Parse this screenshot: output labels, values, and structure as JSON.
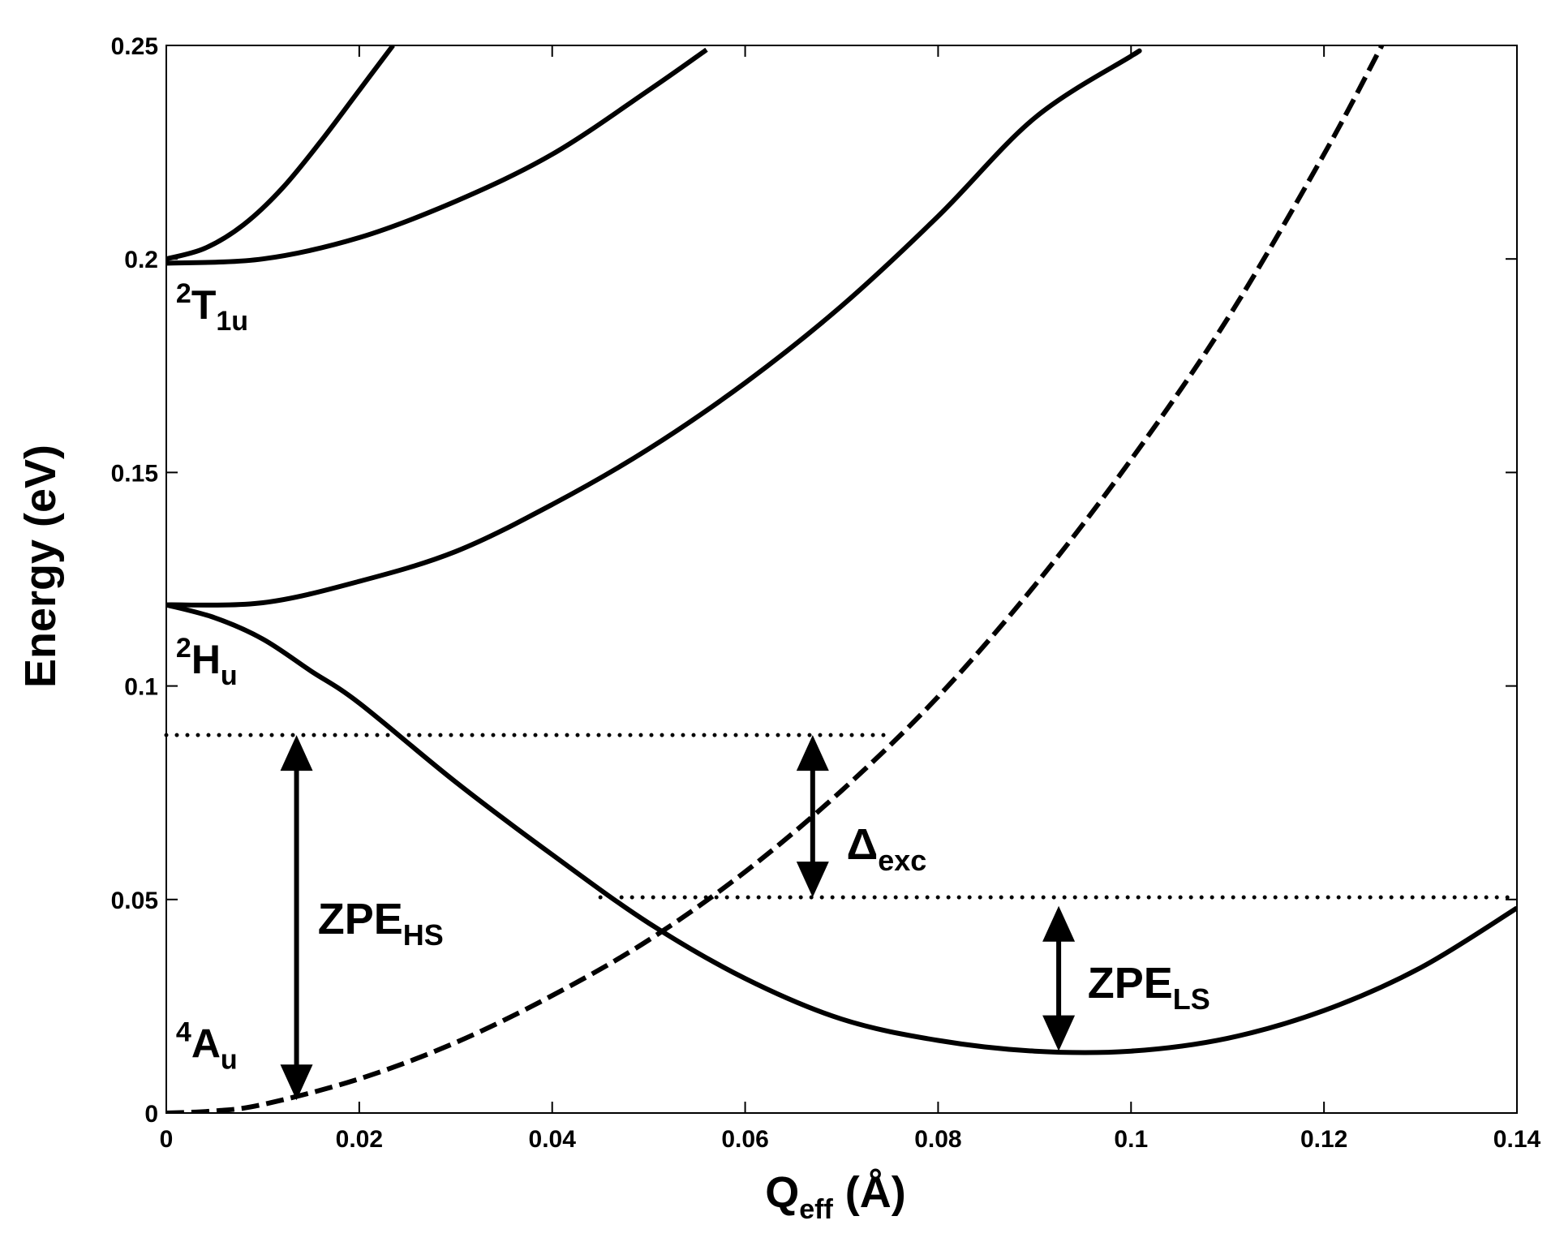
{
  "chart_data": {
    "type": "line",
    "title": "",
    "xlabel": {
      "main": "Q",
      "sub": "eff",
      "unit": " (Å)"
    },
    "ylabel": "Energy (eV)",
    "xlim": [
      0,
      0.14
    ],
    "ylim": [
      0,
      0.25
    ],
    "xticks": [
      0,
      0.02,
      0.04,
      0.06,
      0.08,
      0.1,
      0.12,
      0.14
    ],
    "xtick_labels": [
      "0",
      "0.02",
      "0.04",
      "0.06",
      "0.08",
      "0.1",
      "0.12",
      "0.14"
    ],
    "yticks": [
      0,
      0.05,
      0.1,
      0.15,
      0.2,
      0.25
    ],
    "ytick_labels": [
      "0",
      "0.05",
      "0.1",
      "0.15",
      "0.2",
      "0.25"
    ],
    "grid": false,
    "color": "#000000",
    "series": [
      {
        "style": "solid",
        "x": [
          0,
          0.004,
          0.008,
          0.012,
          0.016,
          0.02,
          0.0235
        ],
        "y": [
          0.2,
          0.2025,
          0.208,
          0.2165,
          0.2275,
          0.2395,
          0.25
        ]
      },
      {
        "style": "solid",
        "x": [
          0,
          0.01,
          0.02,
          0.03,
          0.04,
          0.05,
          0.056
        ],
        "y": [
          0.199,
          0.2,
          0.205,
          0.2135,
          0.2245,
          0.2395,
          0.249
        ]
      },
      {
        "style": "solid",
        "x": [
          0,
          0.01,
          0.02,
          0.03,
          0.04,
          0.05,
          0.06,
          0.07,
          0.08,
          0.09,
          0.1,
          0.1004
        ],
        "y": [
          0.119,
          0.1195,
          0.1245,
          0.1315,
          0.1425,
          0.1555,
          0.171,
          0.189,
          0.21,
          0.233,
          0.2475,
          0.248
        ]
      },
      {
        "style": "solid",
        "x": [
          0,
          0.005,
          0.01,
          0.015,
          0.02,
          0.03,
          0.04,
          0.05,
          0.06,
          0.07,
          0.08,
          0.09,
          0.1,
          0.11,
          0.12,
          0.13,
          0.14
        ],
        "y": [
          0.119,
          0.116,
          0.111,
          0.1035,
          0.096,
          0.0775,
          0.0605,
          0.0445,
          0.0315,
          0.022,
          0.017,
          0.0145,
          0.0145,
          0.0175,
          0.024,
          0.034,
          0.048
        ]
      },
      {
        "style": "dashed",
        "x": [
          0,
          0.005,
          0.01,
          0.02,
          0.03,
          0.04,
          0.05,
          0.06,
          0.07,
          0.08,
          0.09,
          0.1,
          0.11,
          0.12,
          0.126
        ],
        "y": [
          0,
          0.0005,
          0.002,
          0.008,
          0.0165,
          0.0275,
          0.0405,
          0.0565,
          0.0755,
          0.0975,
          0.1235,
          0.153,
          0.186,
          0.2245,
          0.25
        ]
      }
    ],
    "reference_lines": [
      {
        "style": "dotted",
        "y": 0.0885,
        "x": [
          0,
          0.075
        ]
      },
      {
        "style": "dotted",
        "y": 0.0505,
        "x": [
          0.045,
          0.14
        ]
      }
    ],
    "arrows": [
      {
        "x": 0.0135,
        "y": [
          0.003,
          0.0885
        ]
      },
      {
        "x": 0.067,
        "y": [
          0.0505,
          0.0885
        ]
      },
      {
        "x": 0.0925,
        "y": [
          0.0145,
          0.0485
        ]
      }
    ],
    "state_labels": [
      {
        "sup": "2",
        "main": "T",
        "sub": "1u",
        "x": 0.001,
        "y": 0.186
      },
      {
        "sup": "2",
        "main": "H",
        "sub": "u",
        "x": 0.001,
        "y": 0.103
      },
      {
        "sup": "4",
        "main": "A",
        "sub": "u",
        "x": 0.001,
        "y": 0.013
      }
    ],
    "annotations": [
      {
        "main": "ZPE",
        "sub": "HS",
        "x": 0.0157,
        "y": 0.042
      },
      {
        "main": "Δ",
        "sub": "exc",
        "x": 0.0705,
        "y": 0.0595
      },
      {
        "main": "ZPE",
        "sub": "LS",
        "x": 0.0955,
        "y": 0.027
      }
    ]
  }
}
